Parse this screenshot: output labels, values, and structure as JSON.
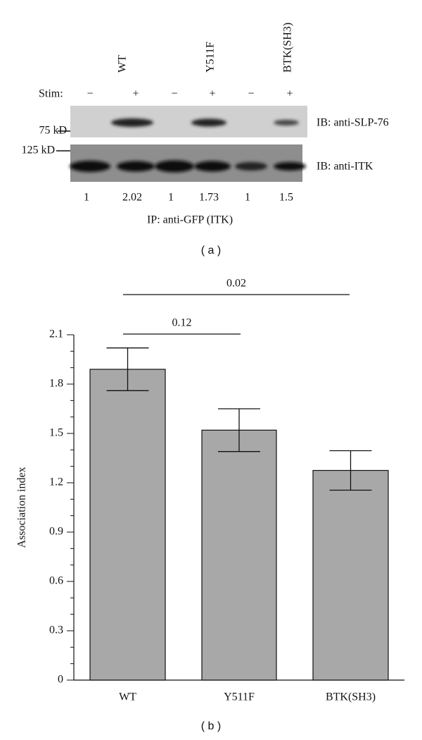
{
  "panel_a": {
    "column_labels": [
      "WT",
      "Y511F",
      "BTK(SH3)"
    ],
    "stim_label": "Stim:",
    "stim": [
      "−",
      "+",
      "−",
      "+",
      "−",
      "+"
    ],
    "markers": [
      "75 kD",
      "125 kD"
    ],
    "blots": [
      "IB: anti-SLP-76",
      "IB: anti-ITK"
    ],
    "ratios": [
      1,
      2.02,
      1,
      1.73,
      1,
      1.5
    ],
    "ip_label": "IP: anti-GFP (ITK)",
    "caption": "( a )"
  },
  "chart_data": {
    "type": "bar",
    "y_label": "Association index",
    "categories": [
      "WT",
      "Y511F",
      "BTK(SH3)"
    ],
    "values": [
      1.89,
      1.52,
      1.275
    ],
    "errors": [
      0.13,
      0.13,
      0.12
    ],
    "color": "#a8a8a8",
    "ylim": [
      0,
      2.1
    ],
    "yticks": [
      0,
      0.3,
      0.6,
      0.9,
      1.2,
      1.5,
      1.8,
      2.1
    ],
    "annotations": [
      "0.12",
      "0.02"
    ],
    "caption": "( b )"
  }
}
